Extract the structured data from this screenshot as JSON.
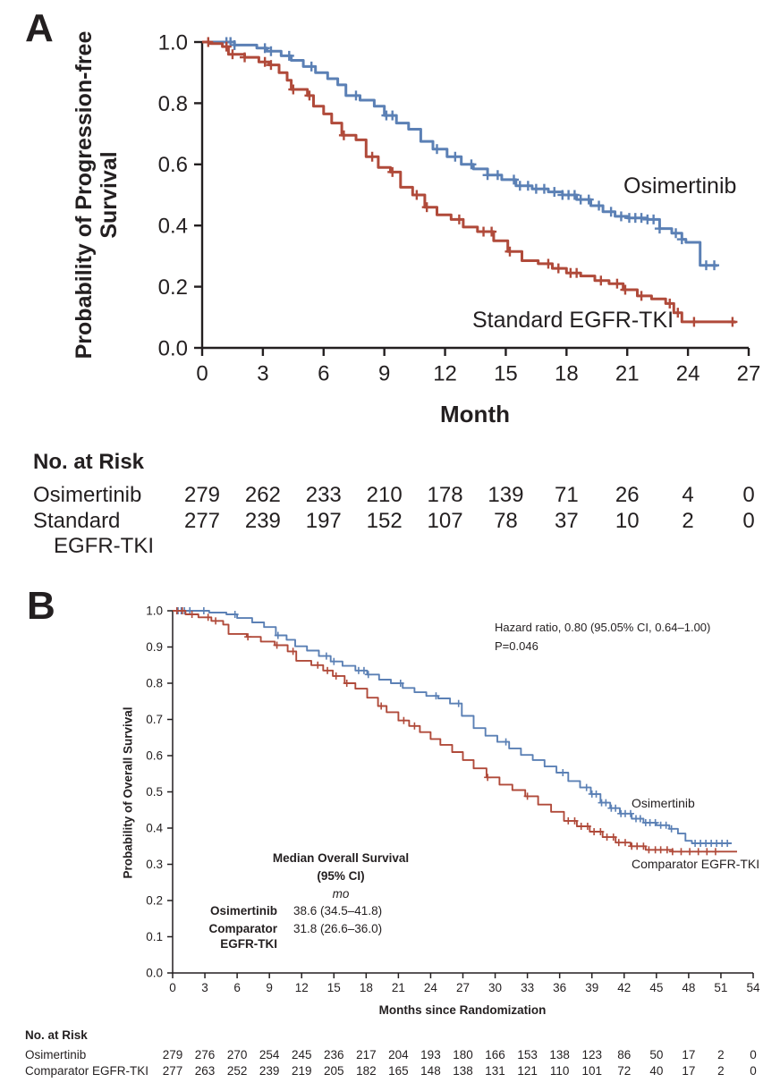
{
  "colors": {
    "osimertinib": "#5b80b5",
    "comparator": "#b04a3a",
    "axis": "#231f20"
  },
  "chart_data": [
    {
      "panel": "A",
      "type": "line",
      "subtype": "kaplan-meier-step",
      "title": "",
      "ylabel": "Probability of Progression-free Survival",
      "ylabel_lines": [
        "Probability of Progression-free",
        "Survival"
      ],
      "xlabel": "Month",
      "xlim": [
        0,
        27
      ],
      "ylim": [
        0,
        1.0
      ],
      "x_ticks": [
        "0",
        "3",
        "6",
        "9",
        "12",
        "15",
        "18",
        "21",
        "24",
        "27"
      ],
      "y_ticks": [
        "1.0",
        "0.8",
        "0.6",
        "0.4",
        "0.2",
        "0.0"
      ],
      "grid": false,
      "legend_position": "on-curve",
      "series": [
        {
          "name": "Osimertinib",
          "color": "#5b80b5",
          "points": [
            [
              0,
              1.0
            ],
            [
              1.3,
              1.0
            ],
            [
              1.6,
              0.99
            ],
            [
              2.7,
              0.98
            ],
            [
              3.2,
              0.97
            ],
            [
              3.9,
              0.955
            ],
            [
              4.4,
              0.94
            ],
            [
              5.0,
              0.92
            ],
            [
              5.6,
              0.9
            ],
            [
              6.2,
              0.88
            ],
            [
              6.7,
              0.86
            ],
            [
              7.1,
              0.825
            ],
            [
              7.8,
              0.81
            ],
            [
              8.5,
              0.79
            ],
            [
              9.0,
              0.76
            ],
            [
              9.6,
              0.735
            ],
            [
              10.2,
              0.715
            ],
            [
              10.8,
              0.675
            ],
            [
              11.4,
              0.65
            ],
            [
              12.1,
              0.625
            ],
            [
              12.8,
              0.6
            ],
            [
              13.4,
              0.585
            ],
            [
              14.1,
              0.565
            ],
            [
              14.8,
              0.55
            ],
            [
              15.5,
              0.53
            ],
            [
              16.3,
              0.52
            ],
            [
              17.1,
              0.51
            ],
            [
              17.8,
              0.5
            ],
            [
              18.5,
              0.485
            ],
            [
              19.2,
              0.465
            ],
            [
              19.8,
              0.445
            ],
            [
              20.4,
              0.43
            ],
            [
              21.0,
              0.425
            ],
            [
              22.0,
              0.42
            ],
            [
              22.6,
              0.39
            ],
            [
              23.2,
              0.375
            ],
            [
              23.7,
              0.355
            ],
            [
              23.9,
              0.345
            ],
            [
              24.6,
              0.27
            ],
            [
              25.4,
              0.265
            ]
          ],
          "censors": [
            1.2,
            1.4,
            1.6,
            3.1,
            3.4,
            4.3,
            5.4,
            7.6,
            9.1,
            9.4,
            11.6,
            12.5,
            13.3,
            14.1,
            14.6,
            15.4,
            15.7,
            16.1,
            16.5,
            16.9,
            17.4,
            17.8,
            18.1,
            18.4,
            18.7,
            19.1,
            19.6,
            20.2,
            20.7,
            21.1,
            21.4,
            21.7,
            22.0,
            22.3,
            22.6,
            23.4,
            23.7,
            24.9,
            25.3
          ]
        },
        {
          "name": "Standard EGFR-TKI",
          "color": "#b04a3a",
          "points": [
            [
              0,
              1.0
            ],
            [
              0.4,
              0.995
            ],
            [
              1.0,
              0.985
            ],
            [
              1.3,
              0.96
            ],
            [
              2.1,
              0.95
            ],
            [
              2.8,
              0.935
            ],
            [
              3.3,
              0.925
            ],
            [
              3.8,
              0.9
            ],
            [
              4.2,
              0.875
            ],
            [
              4.4,
              0.845
            ],
            [
              5.2,
              0.825
            ],
            [
              5.5,
              0.79
            ],
            [
              6.0,
              0.765
            ],
            [
              6.4,
              0.735
            ],
            [
              6.9,
              0.695
            ],
            [
              7.6,
              0.68
            ],
            [
              8.1,
              0.625
            ],
            [
              8.7,
              0.59
            ],
            [
              9.3,
              0.575
            ],
            [
              9.8,
              0.525
            ],
            [
              10.4,
              0.5
            ],
            [
              11.0,
              0.46
            ],
            [
              11.6,
              0.435
            ],
            [
              12.3,
              0.42
            ],
            [
              12.9,
              0.395
            ],
            [
              13.6,
              0.38
            ],
            [
              14.4,
              0.35
            ],
            [
              15.1,
              0.315
            ],
            [
              15.8,
              0.285
            ],
            [
              16.6,
              0.275
            ],
            [
              17.3,
              0.26
            ],
            [
              18.0,
              0.245
            ],
            [
              18.7,
              0.235
            ],
            [
              19.4,
              0.22
            ],
            [
              20.1,
              0.21
            ],
            [
              20.8,
              0.19
            ],
            [
              21.5,
              0.17
            ],
            [
              22.2,
              0.16
            ],
            [
              22.9,
              0.145
            ],
            [
              23.3,
              0.115
            ],
            [
              23.7,
              0.085
            ],
            [
              26.3,
              0.08
            ]
          ],
          "censors": [
            0.3,
            1.2,
            1.5,
            2.1,
            3.1,
            3.4,
            4.5,
            5.3,
            7.0,
            8.4,
            9.4,
            10.6,
            11.1,
            12.7,
            13.9,
            14.3,
            15.2,
            17.1,
            17.6,
            18.2,
            18.5,
            19.7,
            20.5,
            20.9,
            21.7,
            23.1,
            23.5,
            24.3,
            26.2
          ]
        }
      ],
      "risk_table": {
        "header": "No. at Risk",
        "time_points": [
          0,
          3,
          6,
          9,
          12,
          15,
          18,
          21,
          24,
          27
        ],
        "rows": [
          {
            "label_lines": [
              "Osimertinib"
            ],
            "values": [
              "279",
              "262",
              "233",
              "210",
              "178",
              "139",
              "71",
              "26",
              "4",
              "0"
            ]
          },
          {
            "label_lines": [
              "Standard",
              "EGFR-TKI"
            ],
            "values": [
              "277",
              "239",
              "197",
              "152",
              "107",
              "78",
              "37",
              "10",
              "2",
              "0"
            ]
          }
        ]
      }
    },
    {
      "panel": "B",
      "type": "line",
      "subtype": "kaplan-meier-step",
      "title": "",
      "ylabel": "Probability of Overall Survival",
      "ylabel_lines": [
        "Probability of Overall Survival"
      ],
      "xlabel": "Months since Randomization",
      "xlim": [
        0,
        54
      ],
      "ylim": [
        0,
        1.0
      ],
      "x_ticks": [
        "0",
        "3",
        "6",
        "9",
        "12",
        "15",
        "18",
        "21",
        "24",
        "27",
        "30",
        "33",
        "36",
        "39",
        "42",
        "45",
        "48",
        "51",
        "54"
      ],
      "y_ticks": [
        "1.0",
        "0.9",
        "0.8",
        "0.7",
        "0.6",
        "0.5",
        "0.4",
        "0.3",
        "0.2",
        "0.1",
        "0.0"
      ],
      "grid": false,
      "legend_position": "on-curve",
      "annotations": {
        "hazard_line1": "Hazard ratio, 0.80 (95.05% CI, 0.64–1.00)",
        "hazard_line2": "P=0.046",
        "median_title": "Median Overall Survival",
        "median_subtitle": "(95% CI)",
        "median_unit": "mo",
        "median_rows": [
          {
            "label_lines": [
              "Osimertinib"
            ],
            "value": "38.6 (34.5–41.8)"
          },
          {
            "label_lines": [
              "Comparator",
              "EGFR-TKI"
            ],
            "value": "31.8 (26.6–36.0)"
          }
        ]
      },
      "series": [
        {
          "name": "Osimertinib",
          "color": "#5b80b5",
          "points": [
            [
              0,
              1.0
            ],
            [
              2.8,
              1.0
            ],
            [
              3.4,
              0.995
            ],
            [
              5.0,
              0.99
            ],
            [
              6.0,
              0.98
            ],
            [
              7.4,
              0.968
            ],
            [
              8.5,
              0.955
            ],
            [
              9.6,
              0.932
            ],
            [
              10.6,
              0.92
            ],
            [
              11.4,
              0.902
            ],
            [
              12.5,
              0.89
            ],
            [
              13.6,
              0.875
            ],
            [
              14.7,
              0.86
            ],
            [
              15.8,
              0.848
            ],
            [
              17.0,
              0.835
            ],
            [
              18.1,
              0.824
            ],
            [
              19.2,
              0.81
            ],
            [
              20.3,
              0.8
            ],
            [
              21.4,
              0.787
            ],
            [
              22.5,
              0.775
            ],
            [
              23.6,
              0.765
            ],
            [
              24.7,
              0.758
            ],
            [
              25.8,
              0.744
            ],
            [
              26.9,
              0.71
            ],
            [
              28.0,
              0.676
            ],
            [
              29.1,
              0.655
            ],
            [
              30.2,
              0.638
            ],
            [
              31.3,
              0.62
            ],
            [
              32.4,
              0.602
            ],
            [
              33.5,
              0.588
            ],
            [
              34.6,
              0.57
            ],
            [
              35.7,
              0.553
            ],
            [
              36.8,
              0.53
            ],
            [
              37.9,
              0.512
            ],
            [
              38.9,
              0.494
            ],
            [
              39.8,
              0.47
            ],
            [
              40.7,
              0.455
            ],
            [
              41.6,
              0.44
            ],
            [
              42.7,
              0.426
            ],
            [
              43.8,
              0.415
            ],
            [
              45.0,
              0.408
            ],
            [
              46.2,
              0.398
            ],
            [
              47.0,
              0.385
            ],
            [
              47.7,
              0.365
            ],
            [
              48.3,
              0.358
            ],
            [
              52.0,
              0.358
            ]
          ],
          "censors": [
            0.5,
            0.8,
            1.1,
            1.6,
            2.9,
            5.8,
            9.8,
            14.3,
            15.0,
            17.3,
            17.8,
            18.2,
            21.2,
            24.5,
            26.6,
            31.0,
            36.3,
            38.5,
            39.0,
            39.4,
            39.9,
            40.3,
            40.8,
            41.2,
            41.7,
            42.1,
            42.6,
            43.1,
            43.5,
            44.0,
            44.4,
            44.9,
            45.4,
            45.9,
            46.4,
            48.6,
            49.1,
            49.6,
            50.1,
            50.6,
            51.1,
            51.6
          ]
        },
        {
          "name": "Comparator EGFR-TKI",
          "color": "#b04a3a",
          "points": [
            [
              0,
              1.0
            ],
            [
              1.2,
              0.99
            ],
            [
              2.4,
              0.982
            ],
            [
              3.6,
              0.972
            ],
            [
              4.7,
              0.962
            ],
            [
              5.2,
              0.936
            ],
            [
              6.9,
              0.928
            ],
            [
              8.2,
              0.915
            ],
            [
              9.5,
              0.905
            ],
            [
              10.7,
              0.888
            ],
            [
              11.5,
              0.862
            ],
            [
              12.9,
              0.85
            ],
            [
              14.0,
              0.835
            ],
            [
              14.9,
              0.82
            ],
            [
              16.0,
              0.8
            ],
            [
              17.0,
              0.785
            ],
            [
              18.1,
              0.76
            ],
            [
              19.1,
              0.737
            ],
            [
              19.9,
              0.72
            ],
            [
              21.0,
              0.697
            ],
            [
              22.0,
              0.682
            ],
            [
              23.0,
              0.665
            ],
            [
              24.0,
              0.646
            ],
            [
              24.9,
              0.63
            ],
            [
              26.0,
              0.61
            ],
            [
              27.0,
              0.588
            ],
            [
              28.0,
              0.565
            ],
            [
              29.2,
              0.54
            ],
            [
              30.4,
              0.52
            ],
            [
              31.6,
              0.505
            ],
            [
              32.8,
              0.488
            ],
            [
              34.0,
              0.465
            ],
            [
              35.2,
              0.445
            ],
            [
              36.4,
              0.42
            ],
            [
              37.6,
              0.405
            ],
            [
              38.8,
              0.39
            ],
            [
              40.0,
              0.375
            ],
            [
              41.2,
              0.36
            ],
            [
              42.6,
              0.35
            ],
            [
              44.0,
              0.34
            ],
            [
              46.5,
              0.335
            ],
            [
              52.5,
              0.335
            ]
          ],
          "censors": [
            0.4,
            0.9,
            1.8,
            3.3,
            4.0,
            7.0,
            9.7,
            11.2,
            13.5,
            14.4,
            15.2,
            16.2,
            19.4,
            21.5,
            22.5,
            29.3,
            33.0,
            36.8,
            37.4,
            38.0,
            38.6,
            39.2,
            39.8,
            40.4,
            41.0,
            41.5,
            42.1,
            42.7,
            43.2,
            43.8,
            44.3,
            44.9,
            45.4,
            46.0,
            46.5,
            47.3,
            48.1,
            48.9,
            49.7,
            50.5
          ]
        }
      ],
      "risk_table": {
        "header": "No. at Risk",
        "time_points": [
          0,
          3,
          6,
          9,
          12,
          15,
          18,
          21,
          24,
          27,
          30,
          33,
          36,
          39,
          42,
          45,
          48,
          51,
          54
        ],
        "rows": [
          {
            "label_lines": [
              "Osimertinib"
            ],
            "values": [
              "279",
              "276",
              "270",
              "254",
              "245",
              "236",
              "217",
              "204",
              "193",
              "180",
              "166",
              "153",
              "138",
              "123",
              "86",
              "50",
              "17",
              "2",
              "0"
            ]
          },
          {
            "label_lines": [
              "Comparator EGFR-TKI"
            ],
            "values": [
              "277",
              "263",
              "252",
              "239",
              "219",
              "205",
              "182",
              "165",
              "148",
              "138",
              "131",
              "121",
              "110",
              "101",
              "72",
              "40",
              "17",
              "2",
              "0"
            ]
          }
        ]
      }
    }
  ]
}
